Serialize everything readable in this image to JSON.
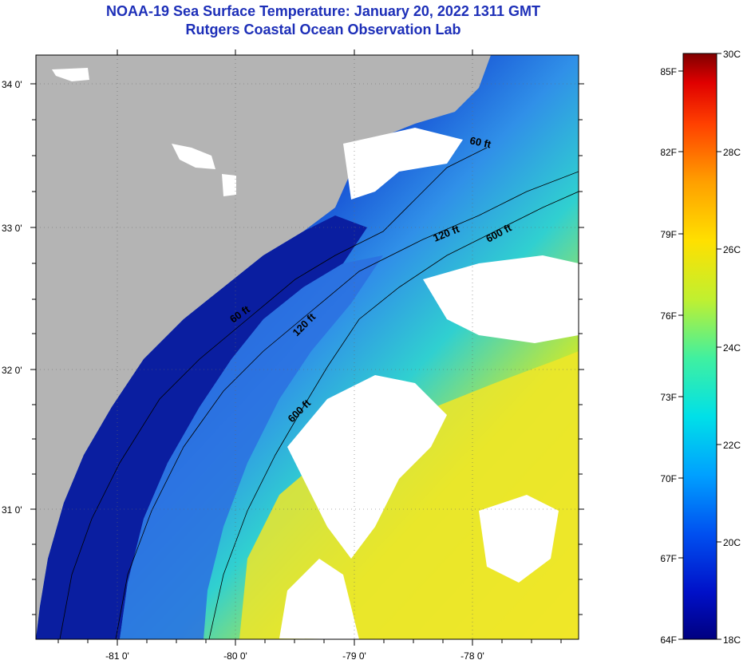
{
  "header": {
    "title_line1": "NOAA-19 Sea Surface Temperature:  January 20, 2022 1311 GMT",
    "title_line2": "Rutgers Coastal Ocean Observation Lab"
  },
  "map": {
    "lat_labels": [
      "34 0'",
      "33 0'",
      "32 0'",
      "31 0'"
    ],
    "lon_labels": [
      "-81 0'",
      "-80 0'",
      "-79 0'",
      "-78 0'"
    ],
    "contour_labels": [
      "60 ft",
      "120 ft",
      "600 ft",
      "60 ft",
      "120 ft",
      "600 ft"
    ],
    "colors": {
      "land": "#b4b4b4",
      "coastal_water": "#0a1ea0",
      "cloud": "#ffffff",
      "offshore_warm": "#f0e628"
    }
  },
  "colorbar": {
    "fahrenheit_labels": [
      "85F",
      "82F",
      "79F",
      "76F",
      "73F",
      "70F",
      "67F",
      "64F"
    ],
    "celsius_labels": [
      "30C",
      "28C",
      "26C",
      "24C",
      "22C",
      "20C",
      "18C"
    ],
    "range_celsius": [
      18,
      30
    ],
    "stops": [
      "#000080",
      "#0010c8",
      "#0050f0",
      "#00a0ff",
      "#00e0e8",
      "#40f0a0",
      "#c0f030",
      "#ffe000",
      "#ffa000",
      "#ff4000",
      "#e00000",
      "#800000"
    ]
  }
}
